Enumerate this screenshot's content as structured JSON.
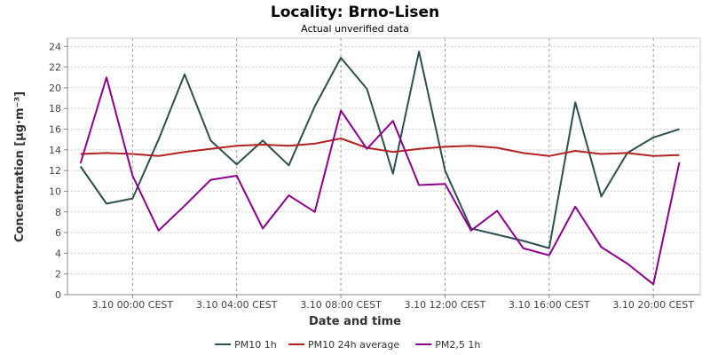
{
  "chart_data": {
    "type": "line",
    "title": "Locality: Brno-Lisen",
    "subtitle": "Actual unverified data",
    "xlabel": "Date and time",
    "ylabel": "Concentration [µg·m⁻³]",
    "ylim": [
      0,
      24.8
    ],
    "y_ticks": [
      0,
      2,
      4,
      6,
      8,
      10,
      12,
      14,
      16,
      18,
      20,
      22,
      24
    ],
    "x_tick_labels": [
      "3.10 00:00 CEST",
      "3.10 04:00 CEST",
      "3.10 08:00 CEST",
      "3.10 12:00 CEST",
      "3.10 16:00 CEST",
      "3.10 20:00 CEST"
    ],
    "x_tick_hours": [
      0,
      4,
      8,
      12,
      16,
      20
    ],
    "xlim_hours": [
      -2.5,
      21.8
    ],
    "x_hours": [
      -2,
      -1,
      0,
      1,
      2,
      3,
      4,
      5,
      6,
      7,
      8,
      9,
      10,
      11,
      12,
      13,
      14,
      15,
      16,
      17,
      18,
      19,
      20,
      21
    ],
    "grid": true,
    "legend_position": "bottom",
    "series": [
      {
        "name": "PM10 1h",
        "color": "#2f4f4f",
        "values": [
          12.4,
          8.8,
          9.3,
          15.0,
          21.3,
          14.9,
          12.6,
          14.9,
          12.5,
          18.2,
          22.9,
          19.9,
          11.7,
          23.5,
          12.0,
          6.4,
          5.8,
          5.2,
          4.5,
          18.6,
          9.5,
          13.7,
          15.2,
          16.0
        ]
      },
      {
        "name": "PM10 24h average",
        "color": "#b22222",
        "values": [
          13.6,
          13.7,
          13.6,
          13.4,
          13.8,
          14.1,
          14.4,
          14.5,
          14.4,
          14.6,
          15.1,
          14.2,
          13.8,
          14.1,
          14.3,
          14.4,
          14.2,
          13.7,
          13.4,
          13.9,
          13.6,
          13.7,
          13.4,
          13.5
        ]
      },
      {
        "name": "PM2,5 1h",
        "color": "#8b008b",
        "values": [
          12.7,
          21.0,
          11.5,
          6.2,
          8.6,
          11.1,
          11.5,
          6.4,
          9.6,
          8.0,
          17.8,
          14.1,
          16.8,
          10.6,
          10.7,
          6.2,
          8.1,
          4.5,
          3.8,
          8.5,
          4.6,
          3.0,
          1.0,
          12.8
        ]
      }
    ]
  }
}
